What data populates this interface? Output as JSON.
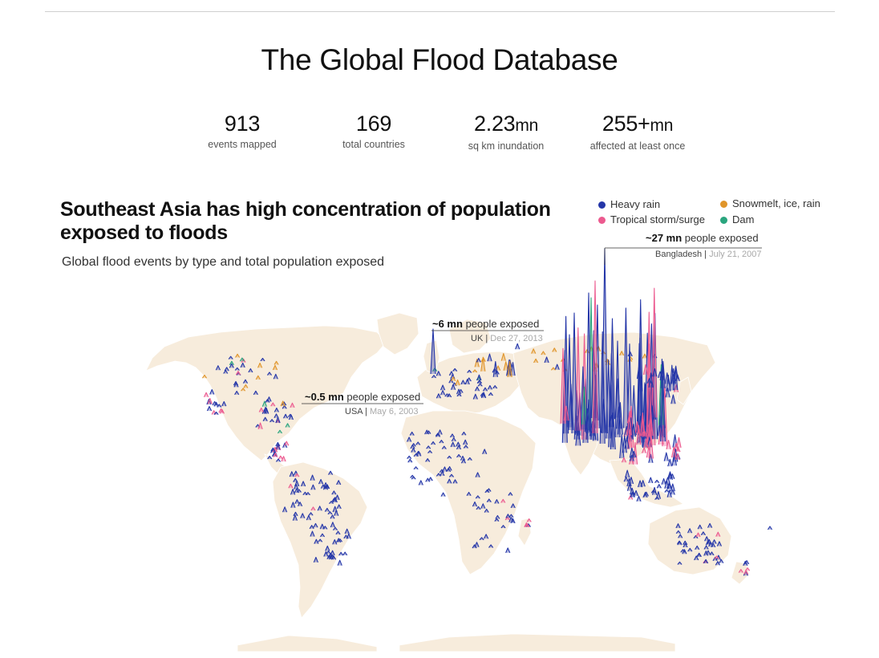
{
  "title": "The Global Flood Database",
  "stats": [
    {
      "number": "913",
      "unit": "",
      "label": "events mapped"
    },
    {
      "number": "169",
      "unit": "",
      "label": "total countries"
    },
    {
      "number": "2.23",
      "unit": "mn",
      "label": "sq km inundation"
    },
    {
      "number": "255+",
      "unit": "mn",
      "label": "affected at least once"
    }
  ],
  "headline": "Southeast Asia has high concentration of population exposed to floods",
  "subtitle": "Global flood events by type and total population exposed",
  "legend": [
    {
      "label": "Heavy rain",
      "color": "#2436a8"
    },
    {
      "label": "Snowmelt, ice, rain",
      "color": "#e0952a"
    },
    {
      "label": "Tropical storm/surge",
      "color": "#ec5a8f"
    },
    {
      "label": "Dam",
      "color": "#2aa57e"
    }
  ],
  "annotations": [
    {
      "value": "~27 mn",
      "text": "people exposed",
      "country": "Bangladesh",
      "date": "July 21, 2007"
    },
    {
      "value": "~6 mn",
      "text": "people exposed",
      "country": "UK",
      "date": "Dec 27, 2013"
    },
    {
      "value": "~0.5 mn",
      "text": "people exposed",
      "country": "USA",
      "date": "May 6, 2003"
    }
  ],
  "chart_data": {
    "type": "map-spikes",
    "encoding": "spike height = total population exposed; color = flood type",
    "categories": [
      "Heavy rain",
      "Snowmelt, ice, rain",
      "Tropical storm/surge",
      "Dam"
    ],
    "highlighted_events": [
      {
        "country": "Bangladesh",
        "date": "July 21, 2007",
        "population_exposed_mn": 27,
        "type": "Heavy rain"
      },
      {
        "country": "UK",
        "date": "Dec 27, 2013",
        "population_exposed_mn": 6,
        "type": "Heavy rain"
      },
      {
        "country": "USA",
        "date": "May 6, 2003",
        "population_exposed_mn": 0.5,
        "type": "Heavy rain"
      }
    ]
  }
}
